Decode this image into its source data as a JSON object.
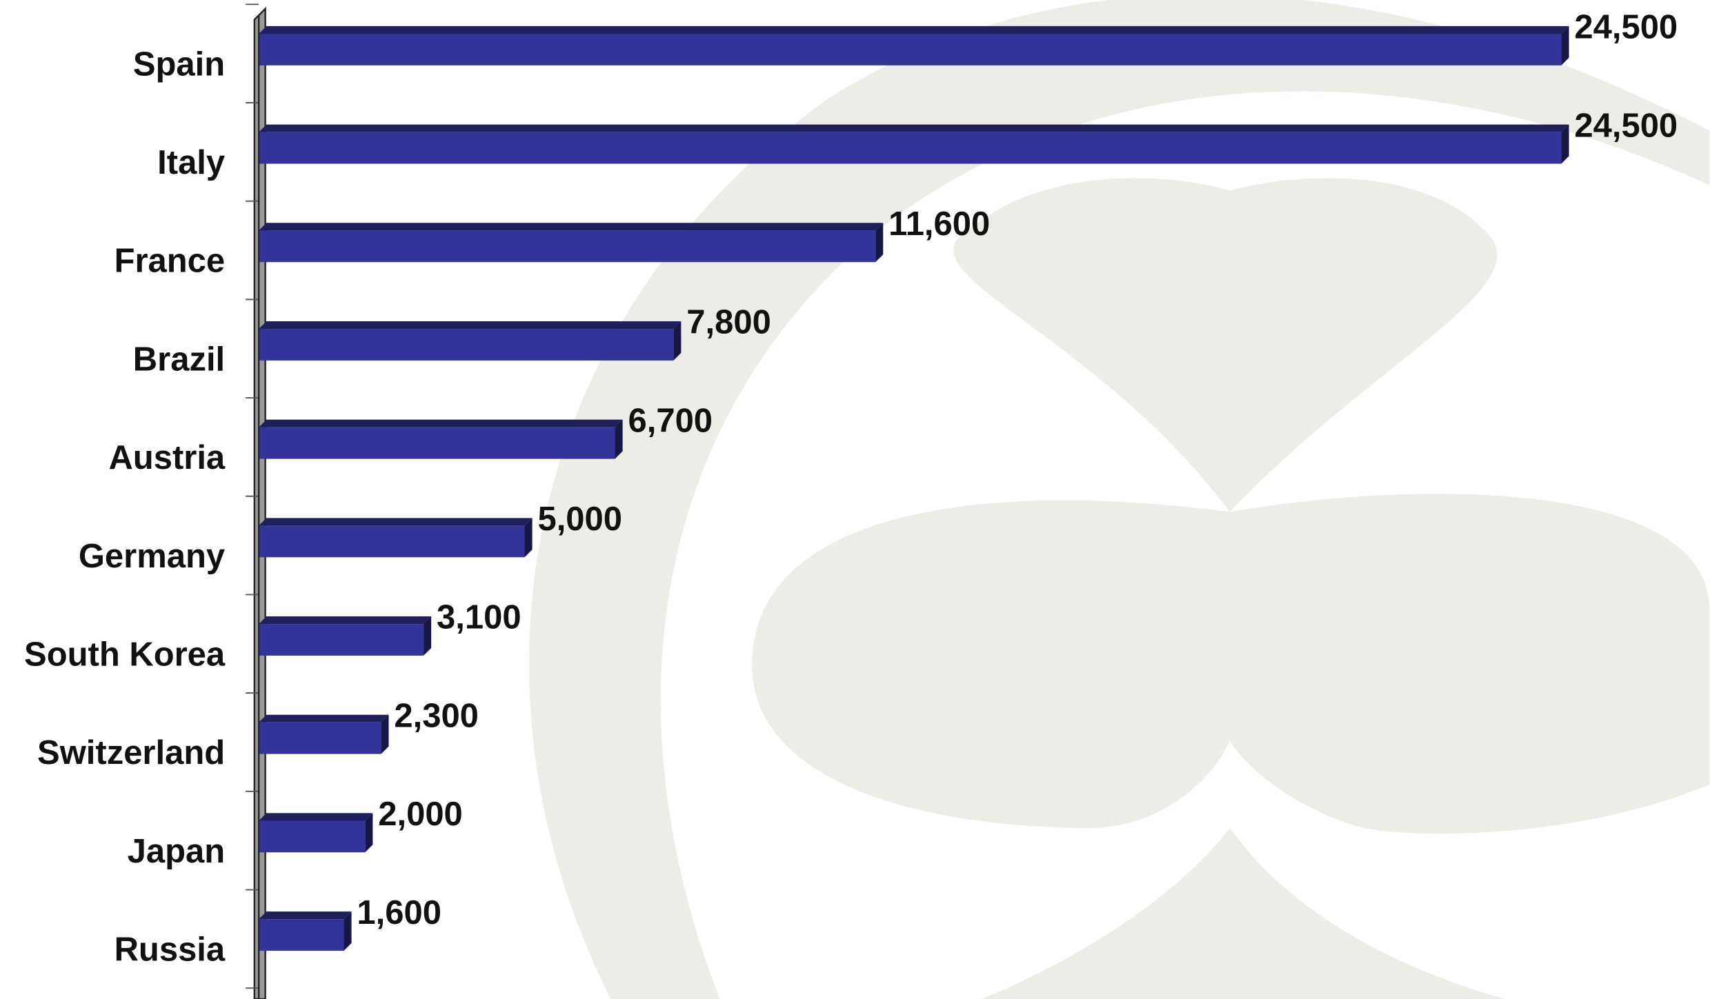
{
  "chart_data": {
    "type": "bar",
    "orientation": "horizontal",
    "categories": [
      "Spain",
      "Italy",
      "France",
      "Brazil",
      "Austria",
      "Germany",
      "South Korea",
      "Switzerland",
      "Japan",
      "Russia"
    ],
    "values": [
      24500,
      24500,
      11600,
      7800,
      6700,
      5000,
      3100,
      2300,
      2000,
      1600
    ],
    "value_labels": [
      "24,500",
      "24,500",
      "11,600",
      "7,800",
      "6,700",
      "5,000",
      "3,100",
      "2,300",
      "2,000",
      "1,600"
    ],
    "color": "#333399"
  }
}
